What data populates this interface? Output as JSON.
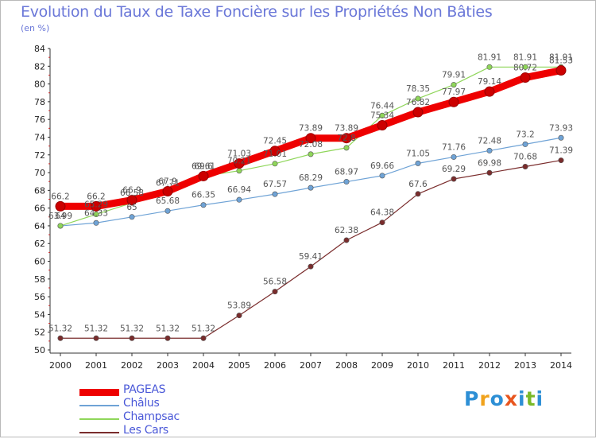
{
  "title": "Evolution du Taux de Taxe Foncière sur les Propriétés Non Bâties",
  "unit_label": "(en %)",
  "logo": {
    "text": "Proxiti",
    "letters": [
      "P",
      "r",
      "o",
      "x",
      "i",
      "t",
      "i"
    ],
    "colors": [
      "#2d8fd5",
      "#f0a21c",
      "#2d8fd5",
      "#e8561f",
      "#2d8fd5",
      "#7ab928",
      "#2d8fd5"
    ]
  },
  "chart_data": {
    "type": "line",
    "title": "Evolution du Taux de Taxe Foncière sur les Propriétés Non Bâties",
    "ylabel": "(en %)",
    "xlabel": "",
    "x": [
      "2000",
      "2001",
      "2002",
      "2003",
      "2004",
      "2005",
      "2006",
      "2007",
      "2008",
      "2009",
      "2010",
      "2011",
      "2012",
      "2013",
      "2014"
    ],
    "ylim": [
      50,
      84
    ],
    "yticks": [
      "50",
      "52",
      "54",
      "56",
      "58",
      "60",
      "62",
      "64",
      "66",
      "68",
      "70",
      "72",
      "74",
      "76",
      "78",
      "80",
      "82",
      "84"
    ],
    "grid": false,
    "legend_position": "bottom-left",
    "series": [
      {
        "name": "PAGEAS",
        "color": "#ee0000",
        "values": [
          66.2,
          66.2,
          66.9,
          67.9,
          69.61,
          71.03,
          72.45,
          73.89,
          73.89,
          75.34,
          76.82,
          77.97,
          79.14,
          80.72,
          81.53
        ],
        "labels": [
          "66.2",
          "66.2",
          "66.9",
          "67.9",
          "69.61",
          "71.03",
          "72.45",
          "73.89",
          "73.89",
          "75.34",
          "76.82",
          "77.97",
          "79.14",
          "80.72",
          "81.53"
        ]
      },
      {
        "name": "Châlus",
        "color": "#6fa3d6",
        "values": [
          63.99,
          64.33,
          65,
          65.68,
          66.35,
          66.94,
          67.57,
          68.29,
          68.97,
          69.66,
          71.05,
          71.76,
          72.48,
          73.2,
          73.93
        ],
        "labels": [
          "63.99",
          "64.33",
          "65",
          "65.68",
          "66.35",
          "66.94",
          "67.57",
          "68.29",
          "68.97",
          "69.66",
          "71.05",
          "71.76",
          "72.48",
          "73.2",
          "73.93"
        ]
      },
      {
        "name": "Champsac",
        "color": "#8fd65a",
        "values": [
          64,
          65.29,
          66.58,
          67.71,
          69.6,
          70.21,
          71.01,
          72.08,
          72.8,
          76.44,
          78.35,
          79.91,
          81.91,
          81.91,
          81.91
        ],
        "labels": [
          "64",
          "65.29",
          "66.58",
          "67.71",
          "69.6",
          "70.21",
          "71.01",
          "72.08",
          "72.8",
          "76.44",
          "78.35",
          "79.91",
          "81.91",
          "81.91",
          "81.91"
        ]
      },
      {
        "name": "Les Cars",
        "color": "#7a2c2c",
        "values": [
          51.32,
          51.32,
          51.32,
          51.32,
          51.32,
          53.89,
          56.58,
          59.41,
          62.38,
          64.38,
          67.6,
          69.29,
          69.98,
          70.68,
          71.39
        ],
        "labels": [
          "51.32",
          "51.32",
          "51.32",
          "51.32",
          "51.32",
          "53.89",
          "56.58",
          "59.41",
          "62.38",
          "64.38",
          "67.6",
          "69.29",
          "69.98",
          "70.68",
          "71.39"
        ]
      }
    ]
  }
}
